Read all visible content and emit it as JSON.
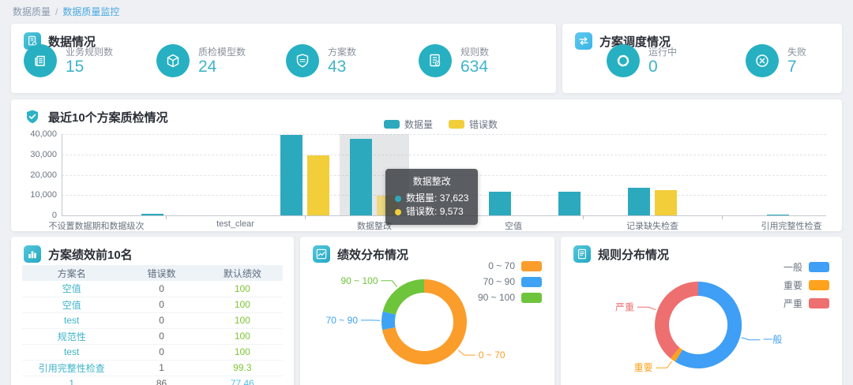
{
  "breadcrumb": {
    "items": [
      "数据质量",
      "数据质量监控"
    ],
    "separator": "/"
  },
  "data_overview": {
    "title": "数据情况",
    "icon": "doc-search-icon",
    "metrics": [
      {
        "label": "业务规则数",
        "value": "15",
        "icon": "news-icon"
      },
      {
        "label": "质检模型数",
        "value": "24",
        "icon": "cube-icon"
      },
      {
        "label": "方案数",
        "value": "43",
        "icon": "shield-icon"
      },
      {
        "label": "规则数",
        "value": "634",
        "icon": "doc-gear-icon"
      }
    ]
  },
  "schedule": {
    "title": "方案调度情况",
    "icon": "transfer-arrows-icon",
    "metrics": [
      {
        "label": "运行中",
        "value": "0",
        "icon": "spinner-icon"
      },
      {
        "label": "失败",
        "value": "7",
        "icon": "cross-circle-icon"
      }
    ]
  },
  "qc_section": {
    "title": "最近10个方案质检情况",
    "icon": "shield-check-icon",
    "tooltip": {
      "title": "数据整改",
      "rows": [
        {
          "label": "数据量",
          "value": "37,623",
          "color": "#2CA9BD"
        },
        {
          "label": "错误数",
          "value": "9,573",
          "color": "#F2CE3B"
        }
      ]
    }
  },
  "performance_table": {
    "title": "方案绩效前10名",
    "icon": "bar-chart-icon",
    "columns": [
      "方案名",
      "错误数",
      "默认绩效"
    ],
    "rows": [
      {
        "name": "空值",
        "errors": "0",
        "score": "100",
        "score_color": "green"
      },
      {
        "name": "空值",
        "errors": "0",
        "score": "100",
        "score_color": "green"
      },
      {
        "name": "test",
        "errors": "0",
        "score": "100",
        "score_color": "green"
      },
      {
        "name": "规范性",
        "errors": "0",
        "score": "100",
        "score_color": "green"
      },
      {
        "name": "test",
        "errors": "0",
        "score": "100",
        "score_color": "green"
      },
      {
        "name": "引用完整性检查",
        "errors": "1",
        "score": "99.3",
        "score_color": "green"
      },
      {
        "name": "1",
        "errors": "86",
        "score": "77.46",
        "score_color": "cyan"
      }
    ]
  },
  "performance_pie_section": {
    "title": "绩效分布情况",
    "icon": "line-chart-icon"
  },
  "rules_pie_section": {
    "title": "规则分布情况",
    "icon": "document-icon"
  },
  "chart_data": [
    {
      "type": "bar",
      "title": "最近10个方案质检情况",
      "categories": [
        "不设置数据期和数据级次",
        "",
        "test_clear",
        "",
        "数据整改",
        "",
        "空值",
        "",
        "记录缺失检查",
        "",
        "引用完整性检查"
      ],
      "series": [
        {
          "name": "数据量",
          "color": "#2CA9BD",
          "values": [
            0,
            700,
            0,
            39500,
            37623,
            0,
            11500,
            11500,
            13600,
            0,
            300
          ]
        },
        {
          "name": "错误数",
          "color": "#F2CE3B",
          "values": [
            0,
            0,
            0,
            29500,
            9573,
            0,
            0,
            0,
            12400,
            0,
            0
          ]
        }
      ],
      "ylabel": "",
      "xlabel": "",
      "ylim": [
        0,
        40000
      ],
      "yticks": [
        "0",
        "10,000",
        "20,000",
        "30,000",
        "40,000"
      ],
      "grid": "horizontal-dashed",
      "legend_position": "top",
      "highlighted_category": "数据整改",
      "highlighted_index": 4,
      "tooltip": {
        "category": "数据整改",
        "数据量": 37623,
        "错误数": 9573
      }
    },
    {
      "type": "pie",
      "title": "绩效分布情况",
      "labels": [
        "0 ~ 70",
        "70 ~ 90",
        "90 ~ 100"
      ],
      "values_pct": [
        72,
        7,
        21
      ],
      "colors": [
        "#FA9D2B",
        "#3FA3F5",
        "#6EC53C"
      ],
      "donut": true,
      "legend_position": "right"
    },
    {
      "type": "pie",
      "title": "规则分布情况",
      "labels": [
        "一般",
        "重要",
        "严重"
      ],
      "values_pct": [
        59,
        2,
        39
      ],
      "colors": [
        "#3F9EF5",
        "#FFA21D",
        "#EE6F6F"
      ],
      "donut": true,
      "legend_position": "right"
    }
  ],
  "colors": {
    "accent_teal": "#27B0C2",
    "metric_value": "#40B4CA",
    "bar_data_volume": "#2CA9BD",
    "bar_error_count": "#F2CE3B",
    "score_green": "#7EC636",
    "link_teal": "#40B4CA",
    "breadcrumb_active": "#49A9E1"
  }
}
